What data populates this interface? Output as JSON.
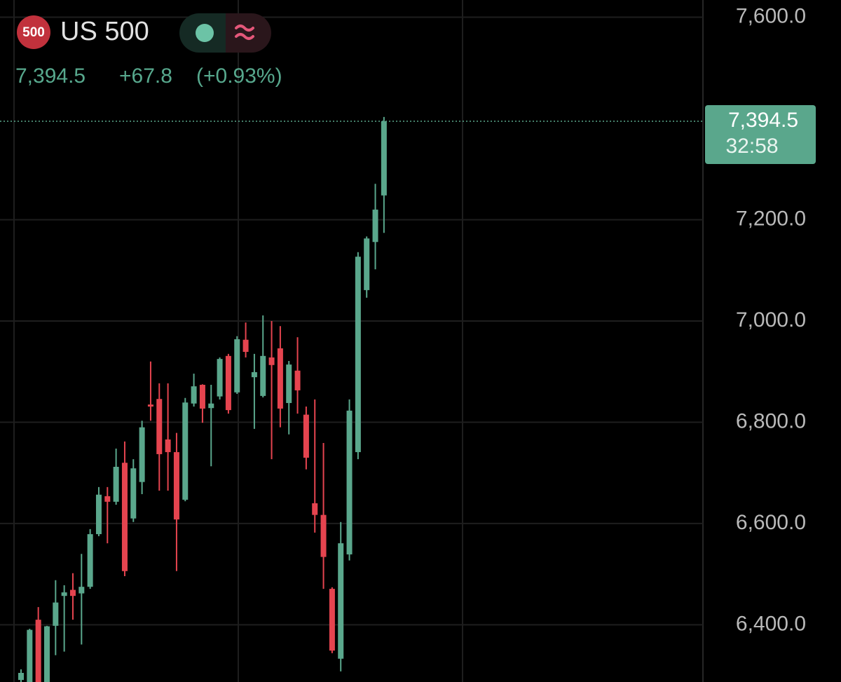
{
  "chart_data": {
    "type": "candlestick",
    "symbol_badge": "500",
    "title": "US 500",
    "last_price": {
      "value": 7394.5,
      "label": "7,394.5"
    },
    "change": "+67.8",
    "change_percent": "(+0.93%)",
    "countdown": "32:58",
    "up_color": "#5aa78c",
    "down_color": "#e5444f",
    "grid": true,
    "ylim": [
      6287,
      7634
    ],
    "yticks": [
      {
        "value": 7600,
        "label": "7,600.0"
      },
      {
        "value": 7200,
        "label": "7,200.0"
      },
      {
        "value": 7000,
        "label": "7,000.0"
      },
      {
        "value": 6800,
        "label": "6,800.0"
      },
      {
        "value": 6600,
        "label": "6,600.0"
      },
      {
        "value": 6400,
        "label": "6,400.0"
      }
    ],
    "open": [
      6291,
      6287,
      6410,
      6287,
      6398,
      6457,
      6469,
      6462,
      6475,
      6579,
      6654,
      6643,
      6720,
      6610,
      6682,
      6835,
      6846,
      6766,
      6741,
      6647,
      6837,
      6874,
      6828,
      6851,
      6931,
      6859,
      6963,
      6889,
      6852,
      6928,
      6946,
      6838,
      6902,
      6815,
      6640,
      6617,
      6471,
      6333,
      6539,
      6741,
      7061,
      7156,
      7248
    ],
    "high": [
      6312,
      6392,
      6435,
      6398,
      6488,
      6478,
      6502,
      6540,
      6589,
      6672,
      6672,
      6748,
      6762,
      6727,
      6803,
      6920,
      6877,
      6877,
      6779,
      6848,
      6896,
      6875,
      6874,
      6928,
      6935,
      6970,
      6997,
      6935,
      7011,
      7000,
      6990,
      6921,
      6968,
      6831,
      6845,
      6759,
      6474,
      6603,
      6845,
      7136,
      7167,
      7271,
      7403
    ],
    "low": [
      6287,
      6287,
      6287,
      6287,
      6340,
      6347,
      6410,
      6361,
      6471,
      6575,
      6561,
      6637,
      6496,
      6603,
      6658,
      6803,
      6665,
      6665,
      6506,
      6644,
      6831,
      6799,
      6713,
      6845,
      6817,
      6856,
      6928,
      6787,
      6849,
      6727,
      6790,
      6776,
      6817,
      6707,
      6582,
      6471,
      6344,
      6308,
      6527,
      6727,
      7046,
      7102,
      7174
    ],
    "close": [
      6305,
      6390,
      6287,
      6397,
      6444,
      6464,
      6457,
      6475,
      6579,
      6657,
      6643,
      6712,
      6506,
      6709,
      6790,
      6831,
      6737,
      6741,
      6608,
      6839,
      6871,
      6827,
      6837,
      6925,
      6824,
      6964,
      6939,
      6899,
      6931,
      6913,
      6827,
      6914,
      6863,
      6730,
      6617,
      6534,
      6349,
      6561,
      6823,
      7127,
      7163,
      7220,
      7394.5
    ]
  }
}
